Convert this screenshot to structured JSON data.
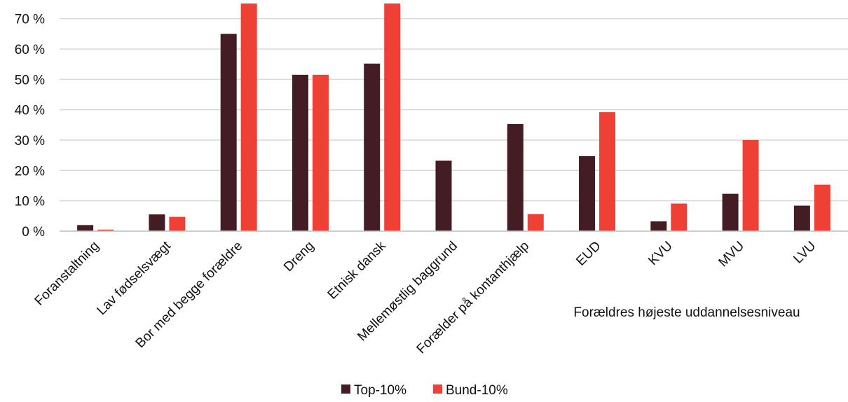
{
  "chart_data": {
    "type": "bar",
    "categories": [
      "Foranstaltning",
      "Lav fødselsvægt",
      "Bor med begge forældre",
      "Dreng",
      "Etnisk dansk",
      "Mellemøstlig baggrund",
      "Forælder på kontanthjælp",
      "EUD",
      "KVU",
      "MVU",
      "LVU"
    ],
    "series": [
      {
        "name": "Top-10%",
        "color": "#431c24",
        "values": [
          2,
          5.5,
          65,
          51.5,
          55.2,
          23.2,
          35.3,
          24.7,
          3.2,
          12.3,
          8.4
        ]
      },
      {
        "name": "Bund-10%",
        "color": "#ee4034",
        "values": [
          0.5,
          4.7,
          75,
          51.5,
          75,
          0,
          5.6,
          39.2,
          9.1,
          30,
          15.3
        ]
      }
    ],
    "y_ticks": [
      "0 %",
      "10 %",
      "20 %",
      "30 %",
      "40 %",
      "50 %",
      "60 %",
      "70 %"
    ],
    "ylim": [
      0,
      75
    ],
    "grid": true,
    "legend_position": "bottom-center",
    "annotation": "Forældres højeste uddannelsesniveau"
  }
}
